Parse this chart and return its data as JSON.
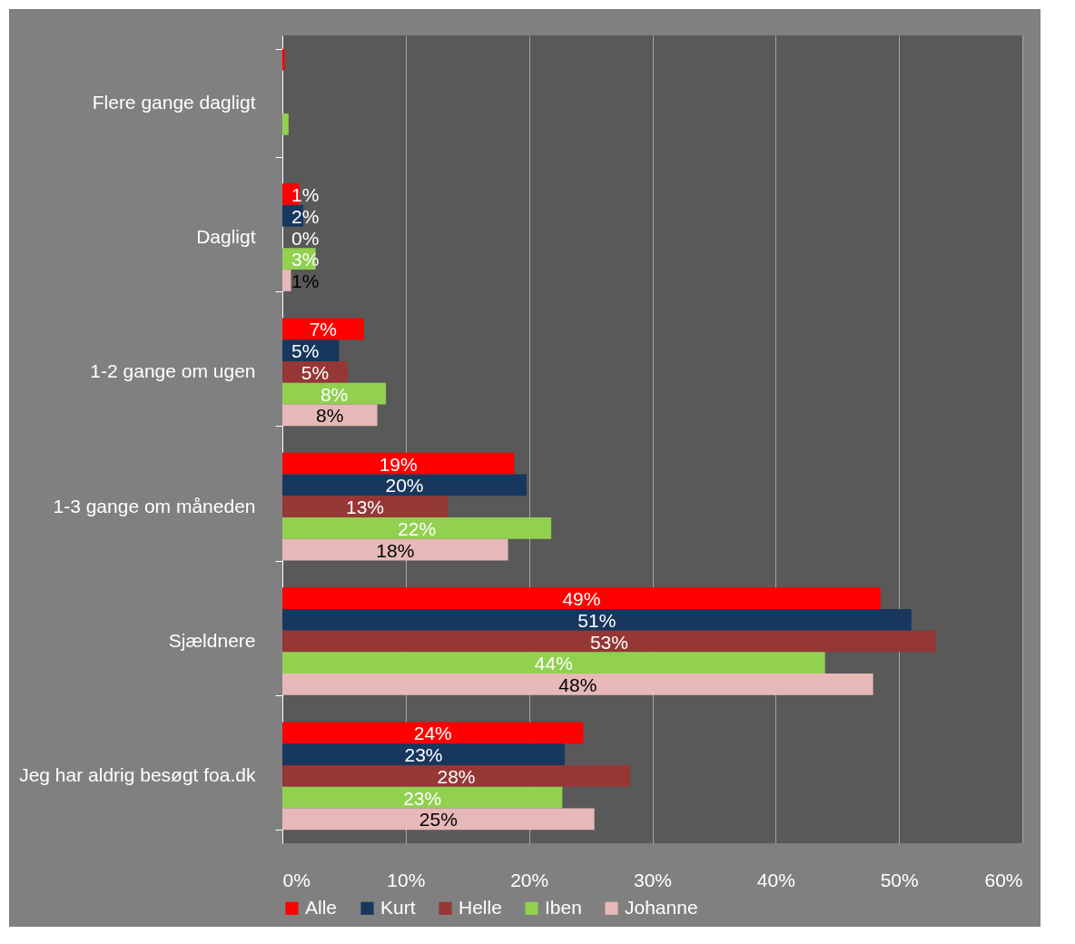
{
  "chart_data": {
    "type": "bar",
    "orientation": "horizontal",
    "categories": [
      "Flere gange dagligt",
      "Dagligt",
      "1-2 gange om ugen",
      "1-3 gange om måneden",
      "Sjældnere",
      "Jeg har aldrig besøgt foa.dk"
    ],
    "series": [
      {
        "name": "Alle",
        "color": "#ff0000",
        "values": [
          0.2,
          1.4,
          6.6,
          18.8,
          48.5,
          24.4
        ],
        "value_labels": [
          null,
          "1%",
          "7%",
          "19%",
          "49%",
          "24%"
        ]
      },
      {
        "name": "Kurt",
        "color": "#17375e",
        "values": [
          null,
          1.7,
          4.6,
          19.8,
          51,
          22.9
        ],
        "value_labels": [
          null,
          "2%",
          "5%",
          "20%",
          "51%",
          "23%"
        ]
      },
      {
        "name": "Helle",
        "color": "#953735",
        "values": [
          null,
          0,
          5.3,
          13.4,
          53,
          28.2
        ],
        "value_labels": [
          null,
          "0%",
          "5%",
          "13%",
          "53%",
          "28%"
        ]
      },
      {
        "name": "Iben",
        "color": "#92d050",
        "values": [
          0.5,
          2.7,
          8.4,
          21.8,
          44,
          22.7
        ],
        "value_labels": [
          null,
          "3%",
          "8%",
          "22%",
          "44%",
          "23%"
        ]
      },
      {
        "name": "Johanne",
        "color": "#e6b9b8",
        "values": [
          null,
          0.7,
          7.7,
          18.3,
          47.9,
          25.3
        ],
        "value_labels": [
          null,
          "1%",
          "8%",
          "18%",
          "48%",
          "25%"
        ]
      }
    ],
    "xlim": [
      0,
      60
    ],
    "xticks": [
      {
        "value": 0,
        "label": "0%"
      },
      {
        "value": 10,
        "label": "10%"
      },
      {
        "value": 20,
        "label": "20%"
      },
      {
        "value": 30,
        "label": "30%"
      },
      {
        "value": 40,
        "label": "40%"
      },
      {
        "value": 50,
        "label": "50%"
      },
      {
        "value": 60,
        "label": "60%"
      }
    ],
    "grid": "x",
    "legend": "bottom"
  }
}
